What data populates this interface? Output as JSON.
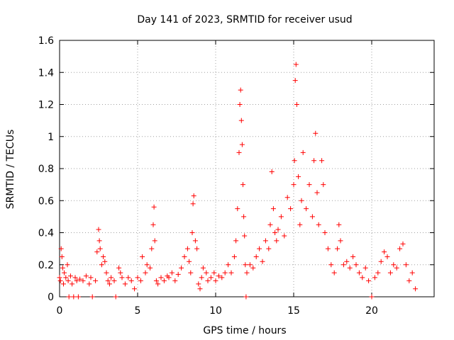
{
  "chart_data": {
    "type": "scatter",
    "title": "Day 141 of 2023, SRMTID for receiver usud",
    "xlabel": "GPS time / hours",
    "ylabel": "SRMTID / TECUs",
    "xlim": [
      0,
      24
    ],
    "ylim": [
      0,
      1.6
    ],
    "xticks": [
      0,
      5,
      10,
      15,
      20
    ],
    "xtick_labels": [
      "0",
      "5",
      "10",
      "15",
      "20"
    ],
    "yticks": [
      0,
      0.2,
      0.4,
      0.6,
      0.8,
      1,
      1.2,
      1.4,
      1.6
    ],
    "ytick_labels": [
      "0",
      "0.2",
      "0.4",
      "0.6",
      "0.8",
      "1",
      "1.2",
      "1.4",
      "1.6"
    ],
    "grid": true,
    "marker": "+",
    "marker_color": "#ff0000",
    "series": [
      {
        "name": "SRMTID",
        "points": [
          [
            0.0,
            0.12
          ],
          [
            0.05,
            0.1
          ],
          [
            0.1,
            0.3
          ],
          [
            0.15,
            0.25
          ],
          [
            0.2,
            0.18
          ],
          [
            0.25,
            0.08
          ],
          [
            0.3,
            0.15
          ],
          [
            0.4,
            0.12
          ],
          [
            0.5,
            0.2
          ],
          [
            0.55,
            0.1
          ],
          [
            0.6,
            0.0
          ],
          [
            0.7,
            0.13
          ],
          [
            0.8,
            0.08
          ],
          [
            0.9,
            0.0
          ],
          [
            1.0,
            0.12
          ],
          [
            1.1,
            0.1
          ],
          [
            1.2,
            0.0
          ],
          [
            1.3,
            0.11
          ],
          [
            1.5,
            0.1
          ],
          [
            1.7,
            0.13
          ],
          [
            1.9,
            0.08
          ],
          [
            2.0,
            0.12
          ],
          [
            2.1,
            0.0
          ],
          [
            2.3,
            0.1
          ],
          [
            2.4,
            0.28
          ],
          [
            2.5,
            0.42
          ],
          [
            2.55,
            0.35
          ],
          [
            2.6,
            0.3
          ],
          [
            2.7,
            0.2
          ],
          [
            2.8,
            0.25
          ],
          [
            2.9,
            0.22
          ],
          [
            3.0,
            0.15
          ],
          [
            3.1,
            0.1
          ],
          [
            3.2,
            0.08
          ],
          [
            3.3,
            0.12
          ],
          [
            3.5,
            0.1
          ],
          [
            3.6,
            0.0
          ],
          [
            3.8,
            0.18
          ],
          [
            3.9,
            0.15
          ],
          [
            4.0,
            0.12
          ],
          [
            4.2,
            0.08
          ],
          [
            4.4,
            0.12
          ],
          [
            4.6,
            0.1
          ],
          [
            4.8,
            0.05
          ],
          [
            5.0,
            0.12
          ],
          [
            5.2,
            0.1
          ],
          [
            5.3,
            0.25
          ],
          [
            5.5,
            0.15
          ],
          [
            5.6,
            0.2
          ],
          [
            5.8,
            0.18
          ],
          [
            5.9,
            0.3
          ],
          [
            6.0,
            0.45
          ],
          [
            6.05,
            0.56
          ],
          [
            6.1,
            0.35
          ],
          [
            6.2,
            0.1
          ],
          [
            6.3,
            0.08
          ],
          [
            6.5,
            0.12
          ],
          [
            6.7,
            0.1
          ],
          [
            6.9,
            0.13
          ],
          [
            7.0,
            0.12
          ],
          [
            7.2,
            0.15
          ],
          [
            7.4,
            0.1
          ],
          [
            7.6,
            0.14
          ],
          [
            7.8,
            0.18
          ],
          [
            8.0,
            0.25
          ],
          [
            8.2,
            0.3
          ],
          [
            8.3,
            0.22
          ],
          [
            8.4,
            0.15
          ],
          [
            8.5,
            0.4
          ],
          [
            8.55,
            0.58
          ],
          [
            8.6,
            0.63
          ],
          [
            8.7,
            0.35
          ],
          [
            8.8,
            0.3
          ],
          [
            8.9,
            0.08
          ],
          [
            9.0,
            0.05
          ],
          [
            9.1,
            0.12
          ],
          [
            9.2,
            0.18
          ],
          [
            9.4,
            0.15
          ],
          [
            9.5,
            0.1
          ],
          [
            9.7,
            0.12
          ],
          [
            9.9,
            0.15
          ],
          [
            10.0,
            0.1
          ],
          [
            10.2,
            0.13
          ],
          [
            10.4,
            0.12
          ],
          [
            10.6,
            0.15
          ],
          [
            10.8,
            0.2
          ],
          [
            11.0,
            0.15
          ],
          [
            11.2,
            0.25
          ],
          [
            11.3,
            0.35
          ],
          [
            11.4,
            0.55
          ],
          [
            11.5,
            0.9
          ],
          [
            11.55,
            1.2
          ],
          [
            11.6,
            1.29
          ],
          [
            11.65,
            1.1
          ],
          [
            11.7,
            0.95
          ],
          [
            11.75,
            0.7
          ],
          [
            11.8,
            0.5
          ],
          [
            11.85,
            0.38
          ],
          [
            11.9,
            0.2
          ],
          [
            11.95,
            0.0
          ],
          [
            12.0,
            0.15
          ],
          [
            12.2,
            0.2
          ],
          [
            12.4,
            0.18
          ],
          [
            12.6,
            0.25
          ],
          [
            12.8,
            0.3
          ],
          [
            13.0,
            0.22
          ],
          [
            13.2,
            0.35
          ],
          [
            13.4,
            0.3
          ],
          [
            13.5,
            0.45
          ],
          [
            13.6,
            0.78
          ],
          [
            13.7,
            0.55
          ],
          [
            13.8,
            0.4
          ],
          [
            13.9,
            0.35
          ],
          [
            14.0,
            0.42
          ],
          [
            14.2,
            0.5
          ],
          [
            14.4,
            0.38
          ],
          [
            14.6,
            0.62
          ],
          [
            14.8,
            0.55
          ],
          [
            15.0,
            0.7
          ],
          [
            15.05,
            0.85
          ],
          [
            15.1,
            1.35
          ],
          [
            15.15,
            1.45
          ],
          [
            15.2,
            1.2
          ],
          [
            15.3,
            0.75
          ],
          [
            15.4,
            0.45
          ],
          [
            15.5,
            0.6
          ],
          [
            15.6,
            0.9
          ],
          [
            15.8,
            0.55
          ],
          [
            16.0,
            0.7
          ],
          [
            16.2,
            0.5
          ],
          [
            16.3,
            0.85
          ],
          [
            16.4,
            1.02
          ],
          [
            16.5,
            0.65
          ],
          [
            16.6,
            0.45
          ],
          [
            16.8,
            0.85
          ],
          [
            16.9,
            0.7
          ],
          [
            17.0,
            0.4
          ],
          [
            17.2,
            0.3
          ],
          [
            17.4,
            0.2
          ],
          [
            17.6,
            0.15
          ],
          [
            17.8,
            0.3
          ],
          [
            17.9,
            0.45
          ],
          [
            18.0,
            0.35
          ],
          [
            18.2,
            0.2
          ],
          [
            18.4,
            0.22
          ],
          [
            18.6,
            0.18
          ],
          [
            18.8,
            0.25
          ],
          [
            19.0,
            0.2
          ],
          [
            19.2,
            0.15
          ],
          [
            19.4,
            0.12
          ],
          [
            19.6,
            0.18
          ],
          [
            19.8,
            0.1
          ],
          [
            20.0,
            0.0
          ],
          [
            20.2,
            0.12
          ],
          [
            20.4,
            0.15
          ],
          [
            20.6,
            0.22
          ],
          [
            20.8,
            0.28
          ],
          [
            21.0,
            0.25
          ],
          [
            21.2,
            0.15
          ],
          [
            21.4,
            0.2
          ],
          [
            21.6,
            0.18
          ],
          [
            21.8,
            0.3
          ],
          [
            22.0,
            0.33
          ],
          [
            22.2,
            0.2
          ],
          [
            22.4,
            0.1
          ],
          [
            22.6,
            0.15
          ],
          [
            22.8,
            0.05
          ]
        ]
      }
    ]
  }
}
